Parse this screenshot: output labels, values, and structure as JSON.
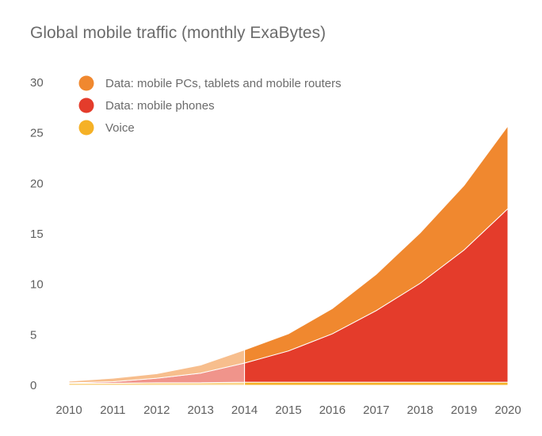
{
  "chart_data": {
    "type": "area",
    "title": "Global mobile traffic (monthly ExaBytes)",
    "xlabel": "",
    "ylabel": "",
    "x": [
      2010,
      2011,
      2012,
      2013,
      2014,
      2015,
      2016,
      2017,
      2018,
      2019,
      2020
    ],
    "ylim": [
      0,
      30
    ],
    "yticks": [
      0,
      5,
      10,
      15,
      20,
      25,
      30
    ],
    "stacked": true,
    "highlight_from": 2014,
    "legend_position": "top-left",
    "series": [
      {
        "name": "Voice",
        "color": "#f5b126",
        "values": [
          0.2,
          0.2,
          0.25,
          0.25,
          0.3,
          0.3,
          0.3,
          0.3,
          0.3,
          0.3,
          0.3
        ]
      },
      {
        "name": "Data: mobile phones",
        "color": "#e43c2b",
        "values": [
          0.05,
          0.15,
          0.45,
          0.95,
          1.9,
          3.1,
          4.8,
          7.1,
          9.8,
          13.1,
          17.2
        ]
      },
      {
        "name": "Data: mobile PCs, tablets and mobile routers",
        "color": "#f0882f",
        "values": [
          0.15,
          0.35,
          0.45,
          0.8,
          1.3,
          1.7,
          2.5,
          3.6,
          5.0,
          6.4,
          8.2
        ]
      }
    ],
    "legend_order": [
      "Data: mobile PCs, tablets and mobile routers",
      "Data: mobile phones",
      "Voice"
    ]
  }
}
